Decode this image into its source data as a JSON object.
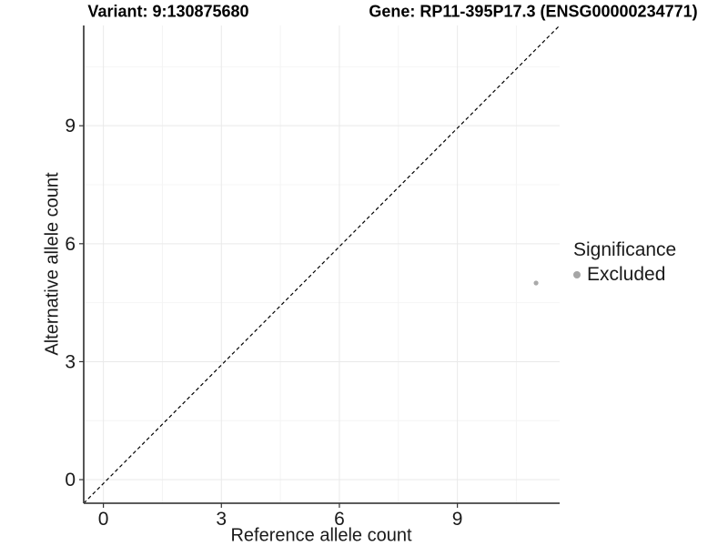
{
  "titles": {
    "variant": "Variant: 9:130875680",
    "gene": "Gene: RP11-395P17.3 (ENSG00000234771)"
  },
  "chart_data": {
    "type": "scatter",
    "title_left": "Variant: 9:130875680",
    "title_right": "Gene: RP11-395P17.3 (ENSG00000234771)",
    "xlabel": "Reference allele count",
    "ylabel": "Alternative allele count",
    "xlim": [
      -0.5,
      11.6
    ],
    "ylim": [
      -0.6,
      11.55
    ],
    "xticks": [
      0,
      3,
      6,
      9
    ],
    "yticks": [
      0,
      3,
      6,
      9
    ],
    "xticks_minor": [
      1.5,
      4.5,
      7.5,
      10.5
    ],
    "yticks_minor": [
      1.5,
      4.5,
      7.5,
      10.5
    ],
    "grid": true,
    "reference_line": {
      "kind": "identity",
      "style": "dashed",
      "color": "#000000"
    },
    "series": [
      {
        "name": "Excluded",
        "color": "#aaaaaa",
        "points": [
          {
            "x": 11,
            "y": 5
          }
        ]
      }
    ],
    "legend": {
      "position": "right",
      "title": "Significance",
      "items": [
        {
          "label": "Excluded",
          "color": "#a6a6a6"
        }
      ]
    }
  },
  "style_colors": {
    "axis_line": "#444444",
    "tick_mark": "#333333",
    "tick_label": "#1a1a1a",
    "grid_major": "#e9e9e9",
    "grid_minor": "#f4f4f4",
    "point": "#aaaaaa",
    "dashed_line": "#000000"
  }
}
